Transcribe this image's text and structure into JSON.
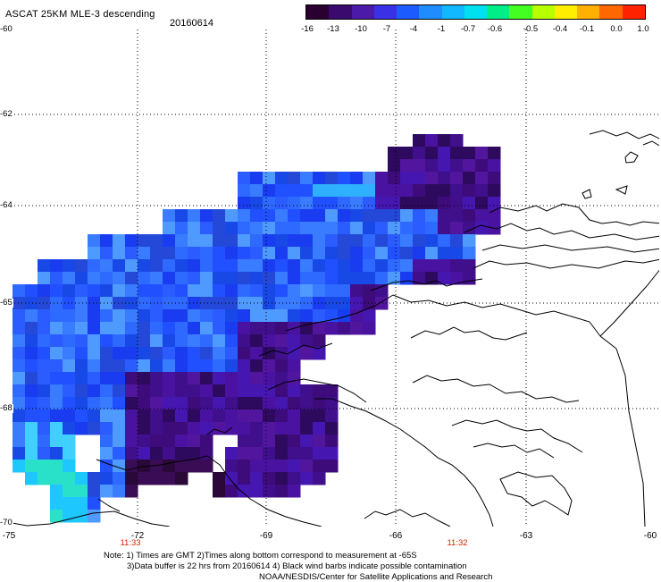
{
  "header": {
    "title": "ASCAT 25KM MLE-3 descending",
    "date": "20160614"
  },
  "colorbar": {
    "ticks": [
      "-16",
      "-13",
      "-10",
      "-7",
      "-4",
      "-1",
      "-0.7",
      "-0.6",
      "-0.5",
      "-0.4",
      "-0.1",
      "0.0",
      "1.0"
    ],
    "colors": [
      "#2a0030",
      "#3b0a6e",
      "#4b1aa8",
      "#3a30e6",
      "#1c5cff",
      "#1f8cff",
      "#12b8ff",
      "#00e0ee",
      "#00ee88",
      "#44ff22",
      "#b8ff00",
      "#ffee00",
      "#ffb000",
      "#ff6800",
      "#ff2200"
    ]
  },
  "axes": {
    "y_labels": [
      "-60",
      "-62",
      "-64",
      "-65",
      "-68",
      "-70"
    ],
    "x_labels": [
      "-75",
      "-72",
      "-69",
      "-66",
      "-63",
      "-60"
    ],
    "time_labels": [
      "11:33",
      "11:32"
    ]
  },
  "notes": {
    "line1": "Note: 1) Times are GMT 2)Times along bottom correspond to measurement at -65S",
    "line2": "3)Data buffer is 22 hrs from 20160614 4) Black wind barbs indicate possible contamination",
    "line3": "NOAA/NESDIS/Center for Satellite Applications and Research"
  }
}
